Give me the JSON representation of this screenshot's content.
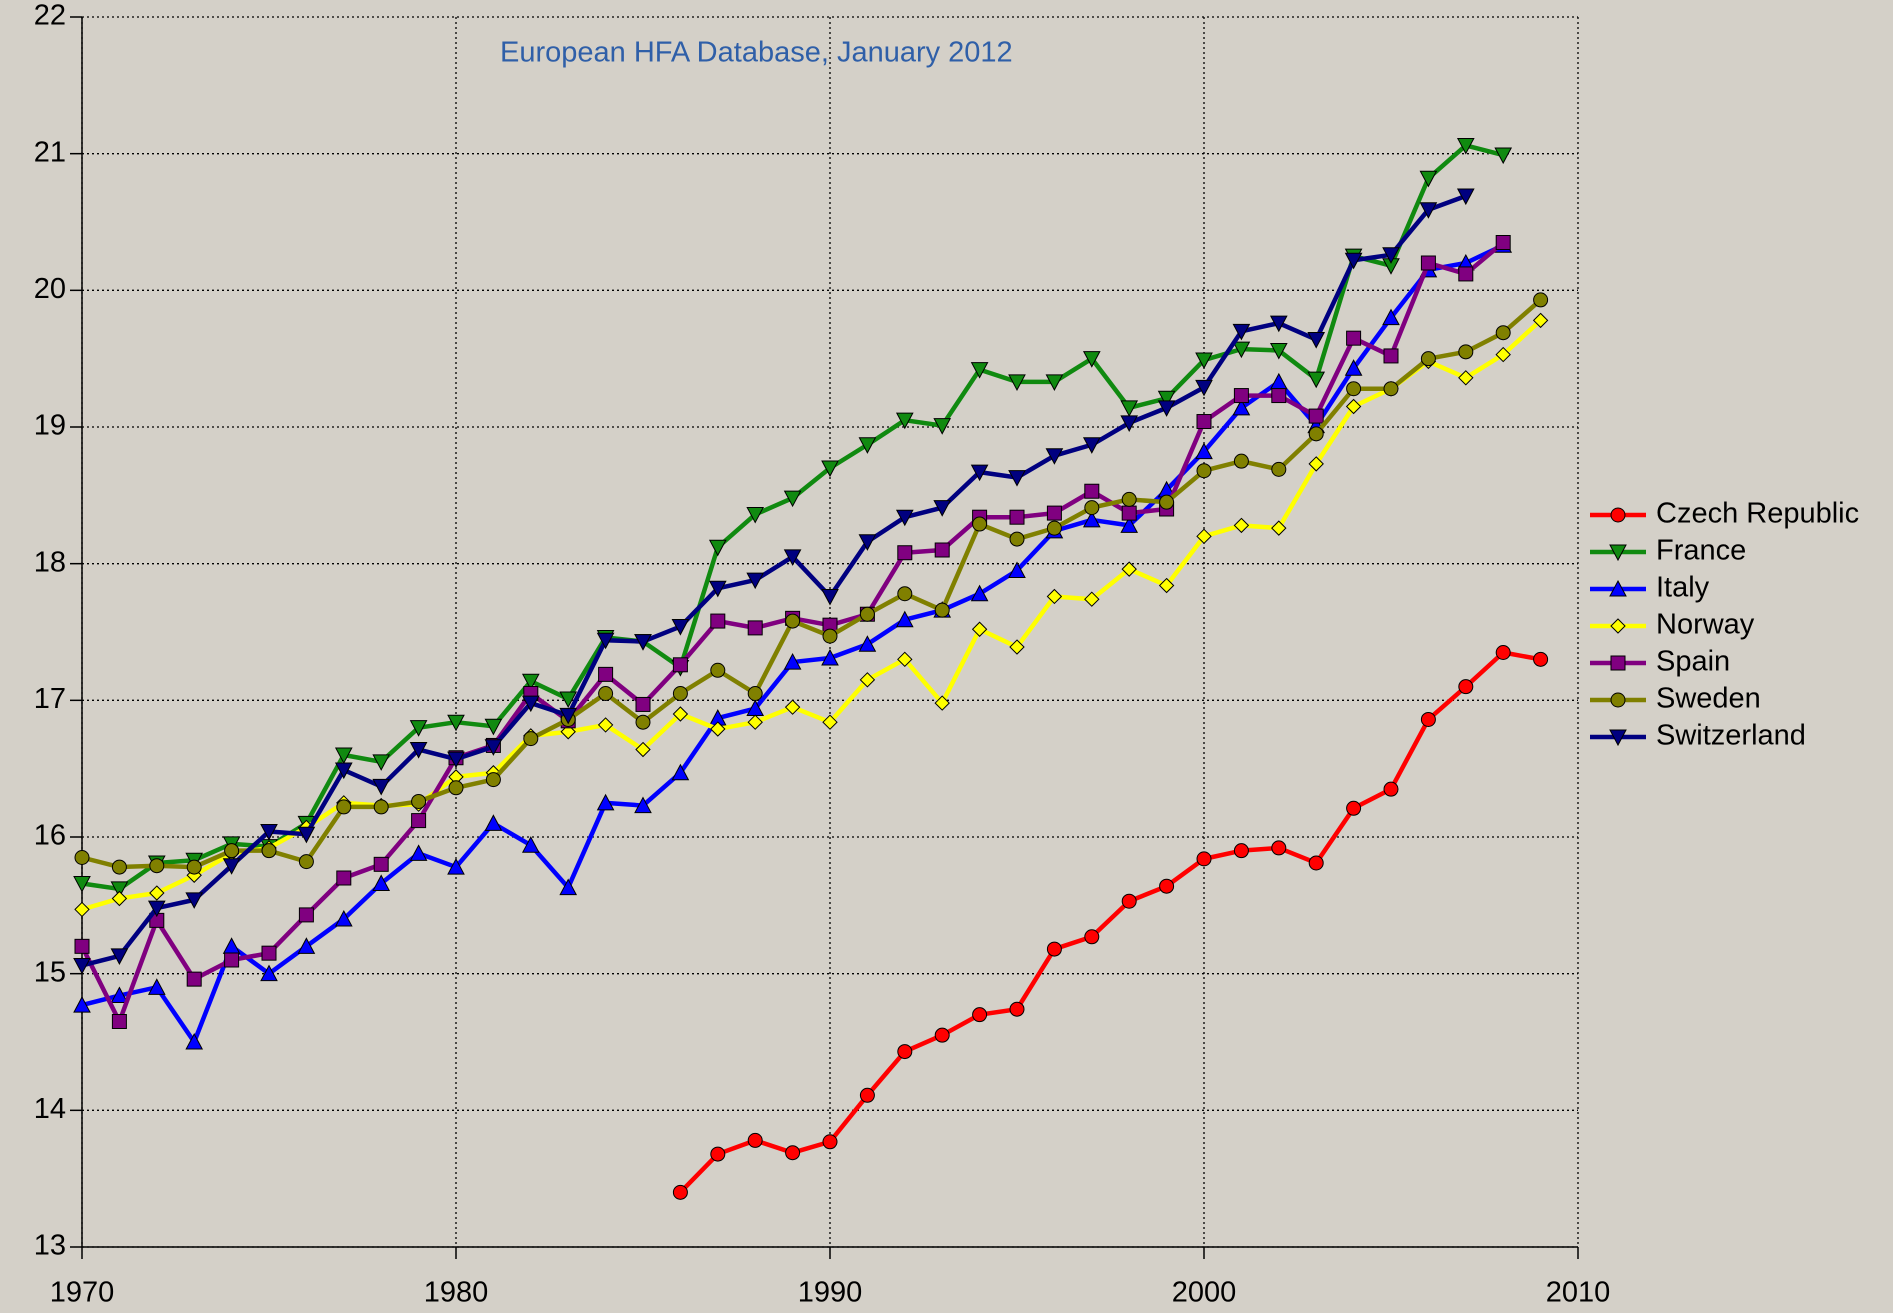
{
  "chart_data": {
    "type": "line",
    "subtitle": "European HFA Database, January 2012",
    "x": [
      1970,
      1971,
      1972,
      1973,
      1974,
      1975,
      1976,
      1977,
      1978,
      1979,
      1980,
      1981,
      1982,
      1983,
      1984,
      1985,
      1986,
      1987,
      1988,
      1989,
      1990,
      1991,
      1992,
      1993,
      1994,
      1995,
      1996,
      1997,
      1998,
      1999,
      2000,
      2001,
      2002,
      2003,
      2004,
      2005,
      2006,
      2007,
      2008,
      2009
    ],
    "xlim": [
      1970,
      2010
    ],
    "xticks": [
      1970,
      1980,
      1990,
      2000,
      2010
    ],
    "ylim": [
      13,
      22
    ],
    "yticks": [
      13,
      14,
      15,
      16,
      17,
      18,
      19,
      20,
      21,
      22
    ],
    "grid": true,
    "legend": "right",
    "series": [
      {
        "name": "Czech Republic",
        "color": "#ff0000",
        "marker": "circle",
        "values": [
          null,
          null,
          null,
          null,
          null,
          null,
          null,
          null,
          null,
          null,
          null,
          null,
          null,
          null,
          null,
          null,
          13.4,
          13.68,
          13.78,
          13.69,
          13.77,
          14.11,
          14.43,
          14.55,
          14.7,
          14.74,
          15.18,
          15.27,
          15.53,
          15.64,
          15.84,
          15.9,
          15.92,
          15.81,
          16.21,
          16.35,
          16.86,
          17.1,
          17.35,
          17.3
        ]
      },
      {
        "name": "France",
        "color": "#108a10",
        "marker": "triangle-down",
        "values": [
          15.66,
          15.62,
          15.81,
          15.83,
          15.95,
          15.93,
          16.1,
          16.6,
          16.55,
          16.8,
          16.84,
          16.81,
          17.14,
          17.01,
          17.46,
          17.43,
          17.24,
          18.12,
          18.36,
          18.48,
          18.7,
          18.87,
          19.05,
          19.01,
          19.42,
          19.33,
          19.33,
          19.5,
          19.14,
          19.21,
          19.49,
          19.57,
          19.56,
          19.35,
          20.25,
          20.18,
          20.82,
          21.06,
          20.99,
          null
        ]
      },
      {
        "name": "Italy",
        "color": "#0000ff",
        "marker": "triangle-up",
        "values": [
          14.77,
          14.84,
          14.9,
          14.5,
          15.2,
          15.0,
          15.2,
          15.4,
          15.66,
          15.88,
          15.78,
          16.1,
          15.94,
          15.63,
          16.25,
          16.23,
          16.47,
          16.87,
          16.94,
          17.28,
          17.31,
          17.41,
          17.59,
          17.66,
          17.78,
          17.95,
          18.24,
          18.32,
          18.28,
          18.54,
          18.82,
          19.14,
          19.33,
          19.01,
          19.43,
          19.8,
          20.15,
          20.2,
          20.33,
          null
        ]
      },
      {
        "name": "Norway",
        "color": "#ffff00",
        "marker": "diamond",
        "values": [
          15.47,
          15.55,
          15.59,
          15.72,
          15.88,
          15.92,
          16.07,
          16.25,
          16.23,
          16.24,
          16.44,
          16.47,
          16.74,
          16.77,
          16.82,
          16.64,
          16.9,
          16.79,
          16.84,
          16.95,
          16.84,
          17.15,
          17.3,
          16.98,
          17.52,
          17.39,
          17.76,
          17.74,
          17.96,
          17.84,
          18.2,
          18.28,
          18.26,
          18.73,
          19.15,
          19.28,
          19.48,
          19.36,
          19.53,
          19.78
        ]
      },
      {
        "name": "Spain",
        "color": "#800080",
        "marker": "square",
        "values": [
          15.2,
          14.65,
          15.39,
          14.96,
          15.1,
          15.15,
          15.43,
          15.7,
          15.8,
          16.12,
          16.58,
          16.67,
          17.05,
          16.85,
          17.19,
          16.97,
          17.26,
          17.58,
          17.53,
          17.6,
          17.55,
          17.63,
          18.08,
          18.1,
          18.34,
          18.34,
          18.37,
          18.53,
          18.37,
          18.4,
          19.04,
          19.23,
          19.23,
          19.08,
          19.65,
          19.52,
          20.2,
          20.12,
          20.35,
          null
        ]
      },
      {
        "name": "Sweden",
        "color": "#808000",
        "marker": "circle",
        "values": [
          15.85,
          15.78,
          15.79,
          15.78,
          15.9,
          15.9,
          15.82,
          16.22,
          16.22,
          16.26,
          16.36,
          16.42,
          16.72,
          16.86,
          17.05,
          16.84,
          17.05,
          17.22,
          17.05,
          17.58,
          17.47,
          17.63,
          17.78,
          17.66,
          18.29,
          18.18,
          18.26,
          18.41,
          18.47,
          18.45,
          18.68,
          18.75,
          18.69,
          18.95,
          19.28,
          19.28,
          19.5,
          19.55,
          19.69,
          19.93
        ]
      },
      {
        "name": "Switzerland",
        "color": "#000080",
        "marker": "triangle-down",
        "values": [
          15.06,
          15.13,
          15.48,
          15.54,
          15.79,
          16.04,
          16.02,
          16.49,
          16.37,
          16.64,
          16.57,
          16.66,
          16.98,
          16.89,
          17.44,
          17.43,
          17.54,
          17.82,
          17.88,
          18.05,
          17.76,
          18.16,
          18.34,
          18.41,
          18.67,
          18.63,
          18.79,
          18.87,
          19.03,
          19.14,
          19.29,
          19.7,
          19.76,
          19.64,
          20.22,
          20.26,
          20.59,
          20.69,
          null,
          null
        ]
      }
    ]
  }
}
